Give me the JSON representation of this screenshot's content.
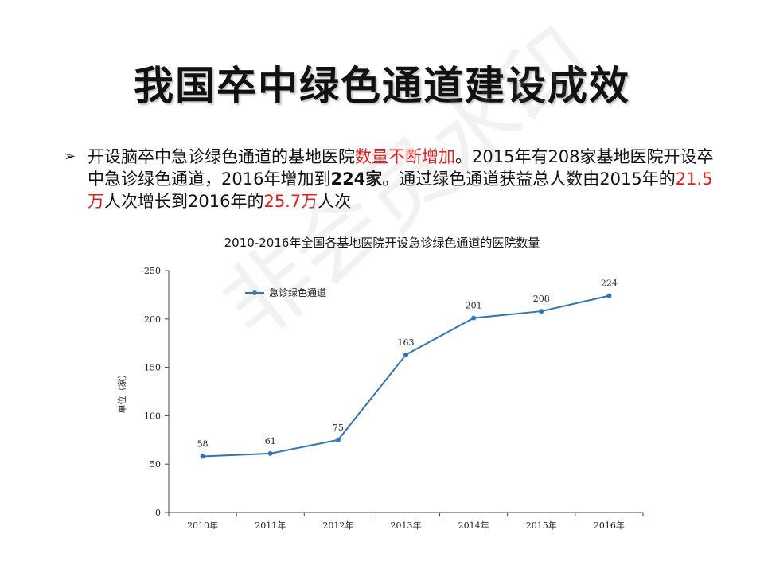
{
  "slide": {
    "title": "我国卒中绿色通道建设成效",
    "bullet_marker": "➢",
    "bullet_segments": [
      {
        "text": "开设脑卒中急诊绿色通道的基地医院",
        "style": "normal"
      },
      {
        "text": "数量不断增加",
        "style": "highlight"
      },
      {
        "text": "。2015年有208家基地医院开设卒中急诊绿色通道，2016年增加到",
        "style": "normal"
      },
      {
        "text": "224家",
        "style": "bold"
      },
      {
        "text": "。通过绿色通道获益总人数由2015年的",
        "style": "normal"
      },
      {
        "text": "21.5万",
        "style": "highlight"
      },
      {
        "text": "人次增长到2016年的",
        "style": "normal"
      },
      {
        "text": "25.7万",
        "style": "highlight"
      },
      {
        "text": "人次",
        "style": "normal"
      }
    ],
    "watermark": "非会员水印"
  },
  "colors": {
    "line": "#2e75b6",
    "highlight": "#e11d1d",
    "axis": "#444444"
  },
  "chart_data": {
    "type": "line",
    "title": "2010-2016年全国各基地医院开设急诊绿色通道的医院数量",
    "xlabel": "",
    "ylabel": "单位（家）",
    "categories": [
      "2010年",
      "2011年",
      "2012年",
      "2013年",
      "2014年",
      "2015年",
      "2016年"
    ],
    "series": [
      {
        "name": "急诊绿色通道",
        "values": [
          58,
          61,
          75,
          163,
          201,
          208,
          224
        ]
      }
    ],
    "ylim": [
      0,
      250
    ],
    "yticks": [
      0,
      50,
      100,
      150,
      200,
      250
    ],
    "grid": false,
    "legend": "top-left",
    "data_labels": true
  }
}
